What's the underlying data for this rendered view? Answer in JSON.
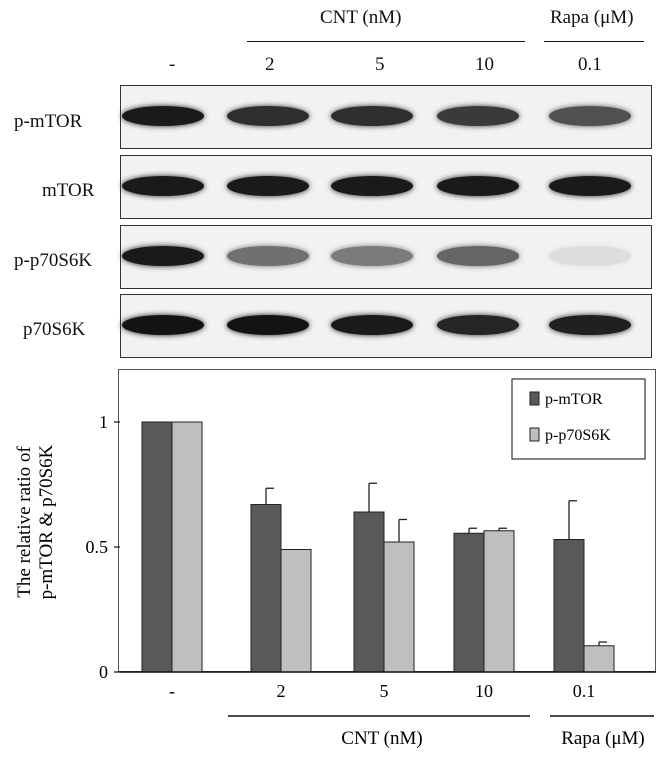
{
  "blot": {
    "group_headers": [
      "CNT (nM)",
      "Rapa (μM)"
    ],
    "lane_labels": [
      "-",
      "2",
      "5",
      "10",
      "0.1"
    ],
    "rows": [
      {
        "label": "p-mTOR",
        "band_intensity": [
          0.95,
          0.85,
          0.85,
          0.8,
          0.7
        ]
      },
      {
        "label": "mTOR",
        "band_intensity": [
          0.95,
          0.95,
          0.95,
          0.95,
          0.95
        ]
      },
      {
        "label": "p-p70S6K",
        "band_intensity": [
          0.95,
          0.55,
          0.5,
          0.6,
          0.04
        ]
      },
      {
        "label": "p70S6K",
        "band_intensity": [
          0.98,
          0.98,
          0.95,
          0.9,
          0.92
        ]
      }
    ]
  },
  "chart_data": {
    "type": "bar",
    "ylabel_lines": [
      "The relative ratio of",
      "p-mTOR & p70S6K"
    ],
    "categories": [
      "-",
      "2",
      "5",
      "10",
      "0.1"
    ],
    "group_labels": [
      "CNT (nM)",
      "Rapa (μM)"
    ],
    "yticks": [
      "0",
      "0.5",
      "1"
    ],
    "ylim": [
      0,
      1.0
    ],
    "legend_position": "top-right",
    "series": [
      {
        "name": "p-mTOR",
        "color": "#595959",
        "values": [
          1.0,
          0.67,
          0.64,
          0.555,
          0.53
        ],
        "errors": [
          0,
          0.065,
          0.115,
          0.02,
          0.155
        ]
      },
      {
        "name": "p-p70S6K",
        "color": "#bfbfbf",
        "values": [
          1.0,
          0.49,
          0.52,
          0.565,
          0.105
        ],
        "errors": [
          0,
          0,
          0.09,
          0.01,
          0.015
        ]
      }
    ]
  }
}
